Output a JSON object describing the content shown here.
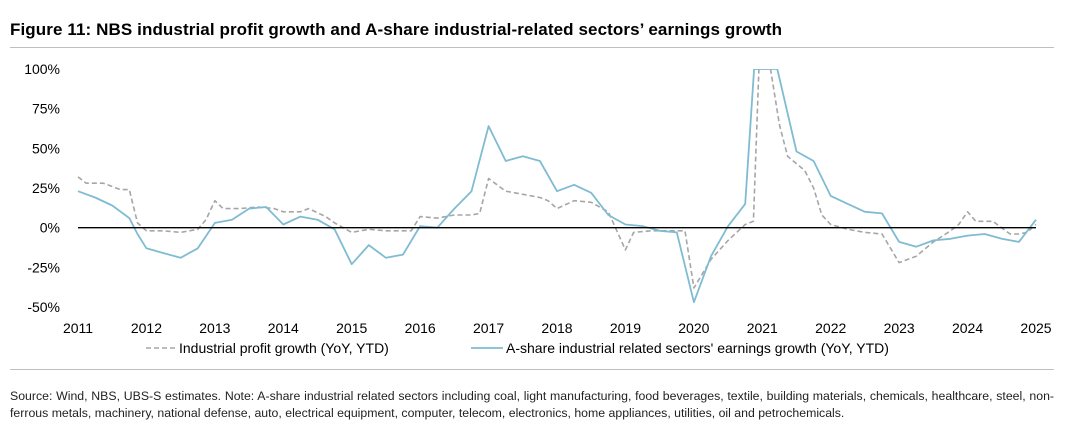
{
  "figure": {
    "title": "Figure 11: NBS industrial profit growth and A-share industrial-related sectors’ earnings growth",
    "source": "Source: Wind, NBS, UBS-S estimates. Note: A-share industrial related sectors including coal, light manufacturing, food beverages, textile, building materials, chemicals, healthcare, steel, non-ferrous metals, machinery, national defense, auto, electrical equipment, computer, telecom, electronics, home appliances, utilities, oil and petrochemicals."
  },
  "chart_data": {
    "type": "line",
    "title": "Figure 11: NBS industrial profit growth and A-share industrial-related sectors’ earnings growth",
    "xlabel": "",
    "ylabel": "",
    "xlim": [
      2011,
      2025
    ],
    "ylim": [
      -50,
      100
    ],
    "x_ticks": [
      2011,
      2012,
      2013,
      2014,
      2015,
      2016,
      2017,
      2018,
      2019,
      2020,
      2021,
      2022,
      2023,
      2024,
      2025
    ],
    "x_tick_labels": [
      "2011",
      "2012",
      "2013",
      "2014",
      "2015",
      "2016",
      "2017",
      "2018",
      "2019",
      "2020",
      "2021",
      "2022",
      "2023",
      "2024",
      "2025"
    ],
    "y_ticks": [
      -50,
      -25,
      0,
      25,
      50,
      75,
      100
    ],
    "y_tick_labels": [
      "-50%",
      "-25%",
      "0%",
      "25%",
      "50%",
      "75%",
      "100%"
    ],
    "grid": false,
    "legend_position": "bottom",
    "colors": {
      "industrial": "#a6a6a6",
      "ashare": "#7fbcd2",
      "axis": "#000000"
    },
    "series": [
      {
        "name": "Industrial profit growth (YoY, YTD)",
        "style": "dashed",
        "points": [
          [
            2011.0,
            32
          ],
          [
            2011.12,
            28
          ],
          [
            2011.37,
            28
          ],
          [
            2011.62,
            24
          ],
          [
            2011.75,
            24
          ],
          [
            2011.87,
            3
          ],
          [
            2012.0,
            -2
          ],
          [
            2012.25,
            -2
          ],
          [
            2012.5,
            -3
          ],
          [
            2012.75,
            -1
          ],
          [
            2012.87,
            5
          ],
          [
            2013.0,
            17
          ],
          [
            2013.12,
            12
          ],
          [
            2013.37,
            12
          ],
          [
            2013.62,
            13
          ],
          [
            2013.87,
            12
          ],
          [
            2014.0,
            10
          ],
          [
            2014.25,
            10
          ],
          [
            2014.37,
            12
          ],
          [
            2014.62,
            7
          ],
          [
            2014.75,
            3
          ],
          [
            2015.0,
            -3
          ],
          [
            2015.25,
            -1
          ],
          [
            2015.5,
            -2
          ],
          [
            2015.75,
            -2
          ],
          [
            2015.87,
            -2
          ],
          [
            2016.0,
            7
          ],
          [
            2016.25,
            6
          ],
          [
            2016.5,
            8
          ],
          [
            2016.75,
            8
          ],
          [
            2016.87,
            9
          ],
          [
            2017.0,
            31
          ],
          [
            2017.25,
            23
          ],
          [
            2017.5,
            21
          ],
          [
            2017.75,
            19
          ],
          [
            2017.87,
            17
          ],
          [
            2018.0,
            12
          ],
          [
            2018.25,
            17
          ],
          [
            2018.5,
            16
          ],
          [
            2018.75,
            10
          ],
          [
            2019.0,
            -14
          ],
          [
            2019.12,
            -3
          ],
          [
            2019.37,
            -2
          ],
          [
            2019.62,
            -2
          ],
          [
            2019.87,
            -2
          ],
          [
            2020.0,
            -38
          ],
          [
            2020.25,
            -20
          ],
          [
            2020.5,
            -8
          ],
          [
            2020.75,
            2
          ],
          [
            2020.87,
            4
          ],
          [
            2020.95,
            100
          ],
          [
            2021.12,
            100
          ],
          [
            2021.25,
            65
          ],
          [
            2021.37,
            45
          ],
          [
            2021.62,
            36
          ],
          [
            2021.75,
            25
          ],
          [
            2021.87,
            8
          ],
          [
            2022.0,
            2
          ],
          [
            2022.25,
            -1
          ],
          [
            2022.5,
            -3
          ],
          [
            2022.75,
            -4
          ],
          [
            2023.0,
            -22
          ],
          [
            2023.25,
            -18
          ],
          [
            2023.5,
            -9
          ],
          [
            2023.75,
            -2
          ],
          [
            2023.87,
            2
          ],
          [
            2024.0,
            10
          ],
          [
            2024.12,
            4
          ],
          [
            2024.37,
            4
          ],
          [
            2024.62,
            -4
          ],
          [
            2024.75,
            -4
          ],
          [
            2024.87,
            -3
          ],
          [
            2025.0,
            2
          ]
        ]
      },
      {
        "name": "A-share industrial related sectors' earnings growth (YoY, YTD)",
        "style": "solid",
        "points": [
          [
            2011.0,
            23
          ],
          [
            2011.25,
            19
          ],
          [
            2011.5,
            14
          ],
          [
            2011.75,
            6
          ],
          [
            2011.87,
            -4
          ],
          [
            2012.0,
            -13
          ],
          [
            2012.25,
            -16
          ],
          [
            2012.5,
            -19
          ],
          [
            2012.75,
            -13
          ],
          [
            2013.0,
            3
          ],
          [
            2013.25,
            5
          ],
          [
            2013.5,
            12
          ],
          [
            2013.75,
            13
          ],
          [
            2014.0,
            2
          ],
          [
            2014.25,
            7
          ],
          [
            2014.5,
            5
          ],
          [
            2014.75,
            -1
          ],
          [
            2015.0,
            -23
          ],
          [
            2015.25,
            -11
          ],
          [
            2015.5,
            -19
          ],
          [
            2015.75,
            -17
          ],
          [
            2016.0,
            1
          ],
          [
            2016.25,
            0
          ],
          [
            2016.5,
            12
          ],
          [
            2016.75,
            23
          ],
          [
            2017.0,
            64
          ],
          [
            2017.25,
            42
          ],
          [
            2017.5,
            45
          ],
          [
            2017.75,
            42
          ],
          [
            2018.0,
            23
          ],
          [
            2018.25,
            27
          ],
          [
            2018.5,
            22
          ],
          [
            2018.75,
            8
          ],
          [
            2019.0,
            2
          ],
          [
            2019.25,
            1
          ],
          [
            2019.5,
            -2
          ],
          [
            2019.75,
            -3
          ],
          [
            2020.0,
            -47
          ],
          [
            2020.25,
            -18
          ],
          [
            2020.5,
            1
          ],
          [
            2020.75,
            15
          ],
          [
            2020.88,
            100
          ],
          [
            2021.22,
            100
          ],
          [
            2021.5,
            48
          ],
          [
            2021.75,
            42
          ],
          [
            2022.0,
            20
          ],
          [
            2022.25,
            15
          ],
          [
            2022.5,
            10
          ],
          [
            2022.75,
            9
          ],
          [
            2023.0,
            -9
          ],
          [
            2023.25,
            -12
          ],
          [
            2023.5,
            -8
          ],
          [
            2023.75,
            -7
          ],
          [
            2024.0,
            -5
          ],
          [
            2024.25,
            -4
          ],
          [
            2024.5,
            -7
          ],
          [
            2024.75,
            -9
          ],
          [
            2025.0,
            5
          ]
        ]
      }
    ]
  }
}
